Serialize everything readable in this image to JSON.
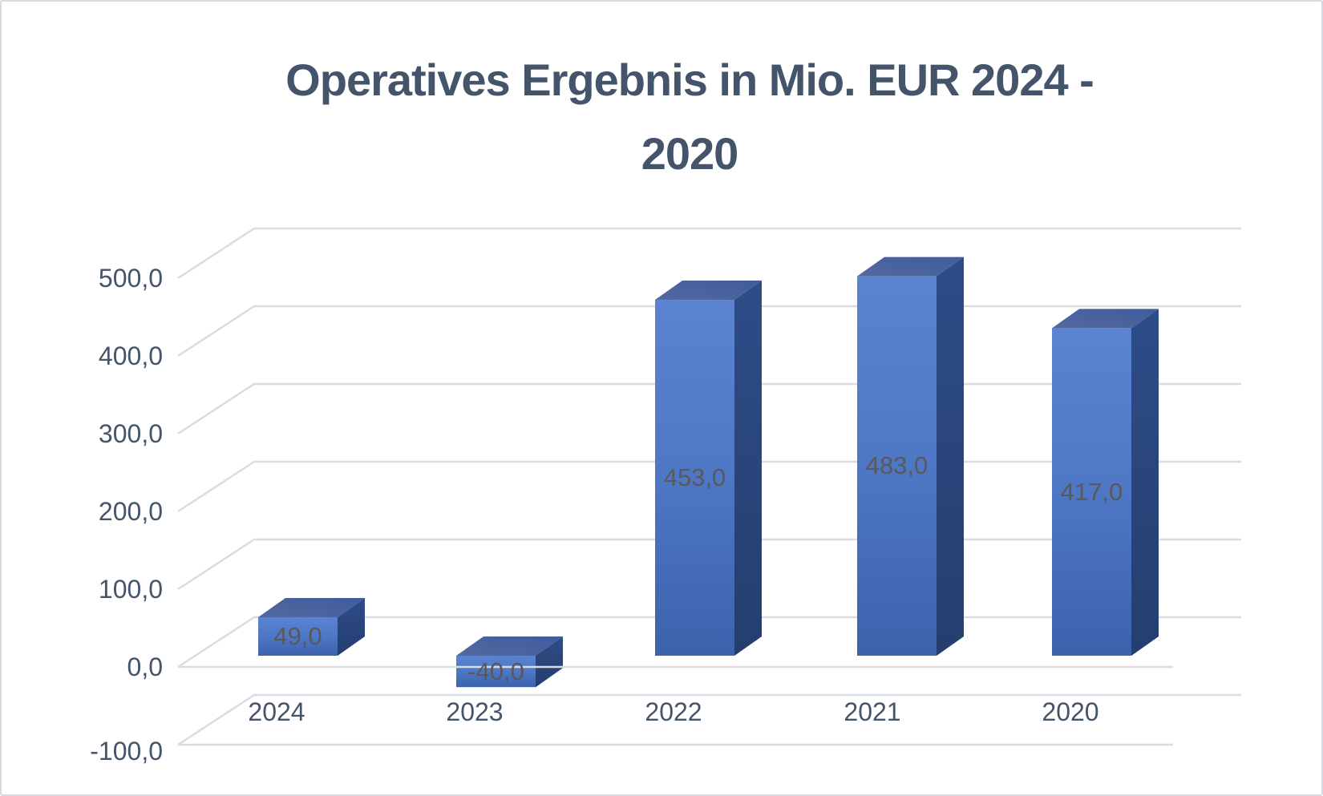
{
  "title": {
    "line1": "Operatives Ergebnis in Mio. EUR 2024 -",
    "line2": "2020",
    "full": "Operatives Ergebnis in Mio. EUR 2024 - 2020"
  },
  "y_axis": {
    "tick_labels": [
      "500,0",
      "400,0",
      "300,0",
      "200,0",
      "100,0",
      "0,0",
      "-100,0"
    ],
    "tick_values": [
      500,
      400,
      300,
      200,
      100,
      0,
      -100
    ]
  },
  "x_axis": {
    "categories": [
      "2024",
      "2023",
      "2022",
      "2021",
      "2020"
    ]
  },
  "series": {
    "values": [
      49.0,
      -40.0,
      453.0,
      483.0,
      417.0
    ],
    "data_labels": [
      "49,0",
      "-40,0",
      "453,0",
      "483,0",
      "417,0"
    ]
  },
  "colors": {
    "background": "#ffffff",
    "border": "#d5dae2",
    "title_text": "#44546A",
    "axis_label_text": "#44546A",
    "data_label_text": "#595959",
    "gridline": "#dadce5",
    "bar_front_top": "#5a83d1",
    "bar_front_mid": "#4f79c7",
    "bar_front_bottom": "#3c62ac",
    "bar_top_face_light": "#52699f",
    "bar_top_face_dark": "#3f5c9e",
    "bar_side_top": "#2e4c87",
    "bar_side_bottom": "#243e6f"
  },
  "chart_data": {
    "type": "bar",
    "subtype": "3d-column",
    "title": "Operatives Ergebnis in Mio. EUR 2024 - 2020",
    "categories": [
      "2024",
      "2023",
      "2022",
      "2021",
      "2020"
    ],
    "values": [
      49.0,
      -40.0,
      453.0,
      483.0,
      417.0
    ],
    "data_labels": [
      "49,0",
      "-40,0",
      "453,0",
      "483,0",
      "417,0"
    ],
    "xlabel": "",
    "ylabel": "",
    "ylim": [
      -100,
      500
    ],
    "y_tick_step": 100,
    "number_format": "decimal comma, one decimal place",
    "grid": true,
    "legend": false,
    "series_count": 1
  }
}
